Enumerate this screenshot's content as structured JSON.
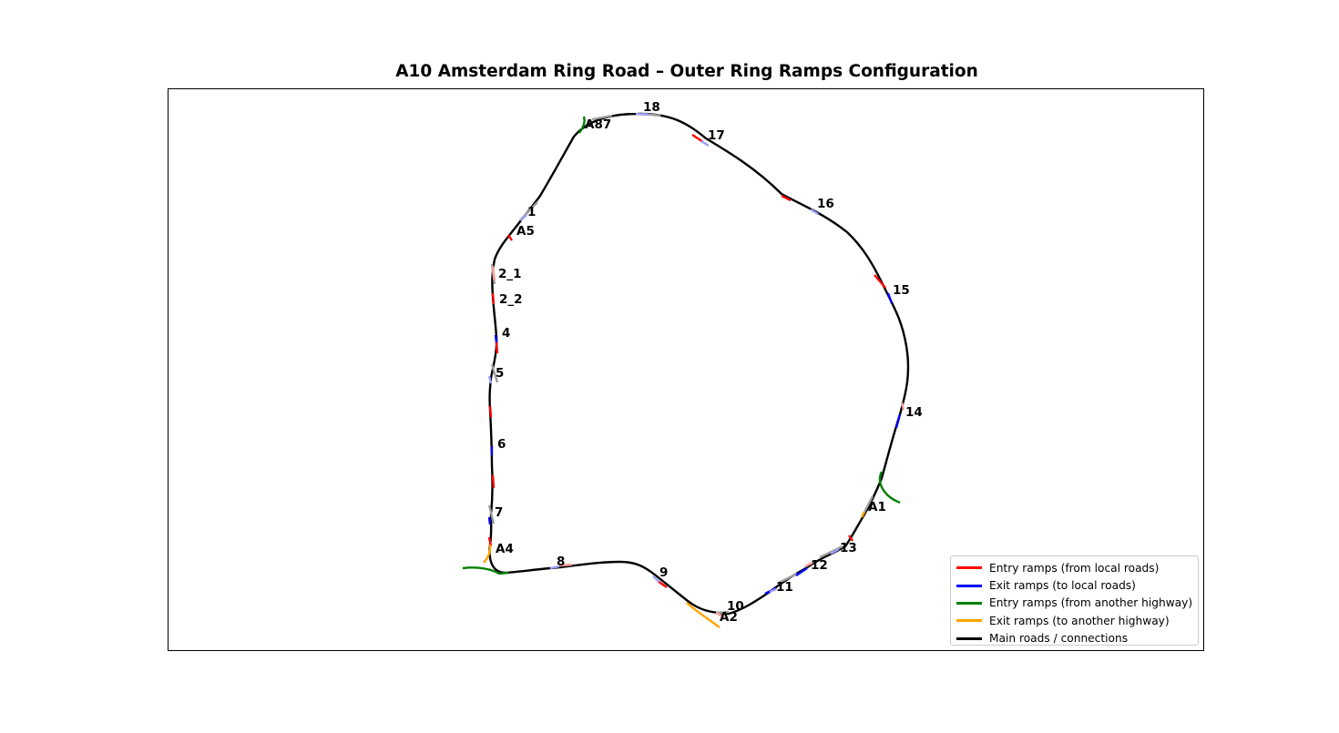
{
  "title": "A10 Amsterdam Ring Road – Outer Ring Ramps Configuration",
  "colors": {
    "entry_local": "#ff0000",
    "exit_local": "#0000ff",
    "entry_highway": "#008000",
    "exit_highway": "#ffa500",
    "main": "#000000",
    "connector_gray": "#a0a0a0",
    "entry_local_faded": "#ff9f9f",
    "exit_local_faded": "#9f9fff"
  },
  "legend": [
    {
      "label": "Entry ramps (from local roads)",
      "color": "#ff0000"
    },
    {
      "label": "Exit ramps (to local roads)",
      "color": "#0000ff"
    },
    {
      "label": "Entry ramps (from another highway)",
      "color": "#008000"
    },
    {
      "label": "Exit ramps (to another highway)",
      "color": "#ffa500"
    },
    {
      "label": "Main roads / connections",
      "color": "#000000"
    }
  ],
  "junction_labels": [
    "18",
    "A87",
    "17",
    "16",
    "1",
    "A5",
    "15",
    "2_1",
    "2_2",
    "4",
    "5",
    "14",
    "6",
    "A1",
    "7",
    "A4",
    "13",
    "8",
    "12",
    "9",
    "11",
    "10",
    "A2"
  ]
}
